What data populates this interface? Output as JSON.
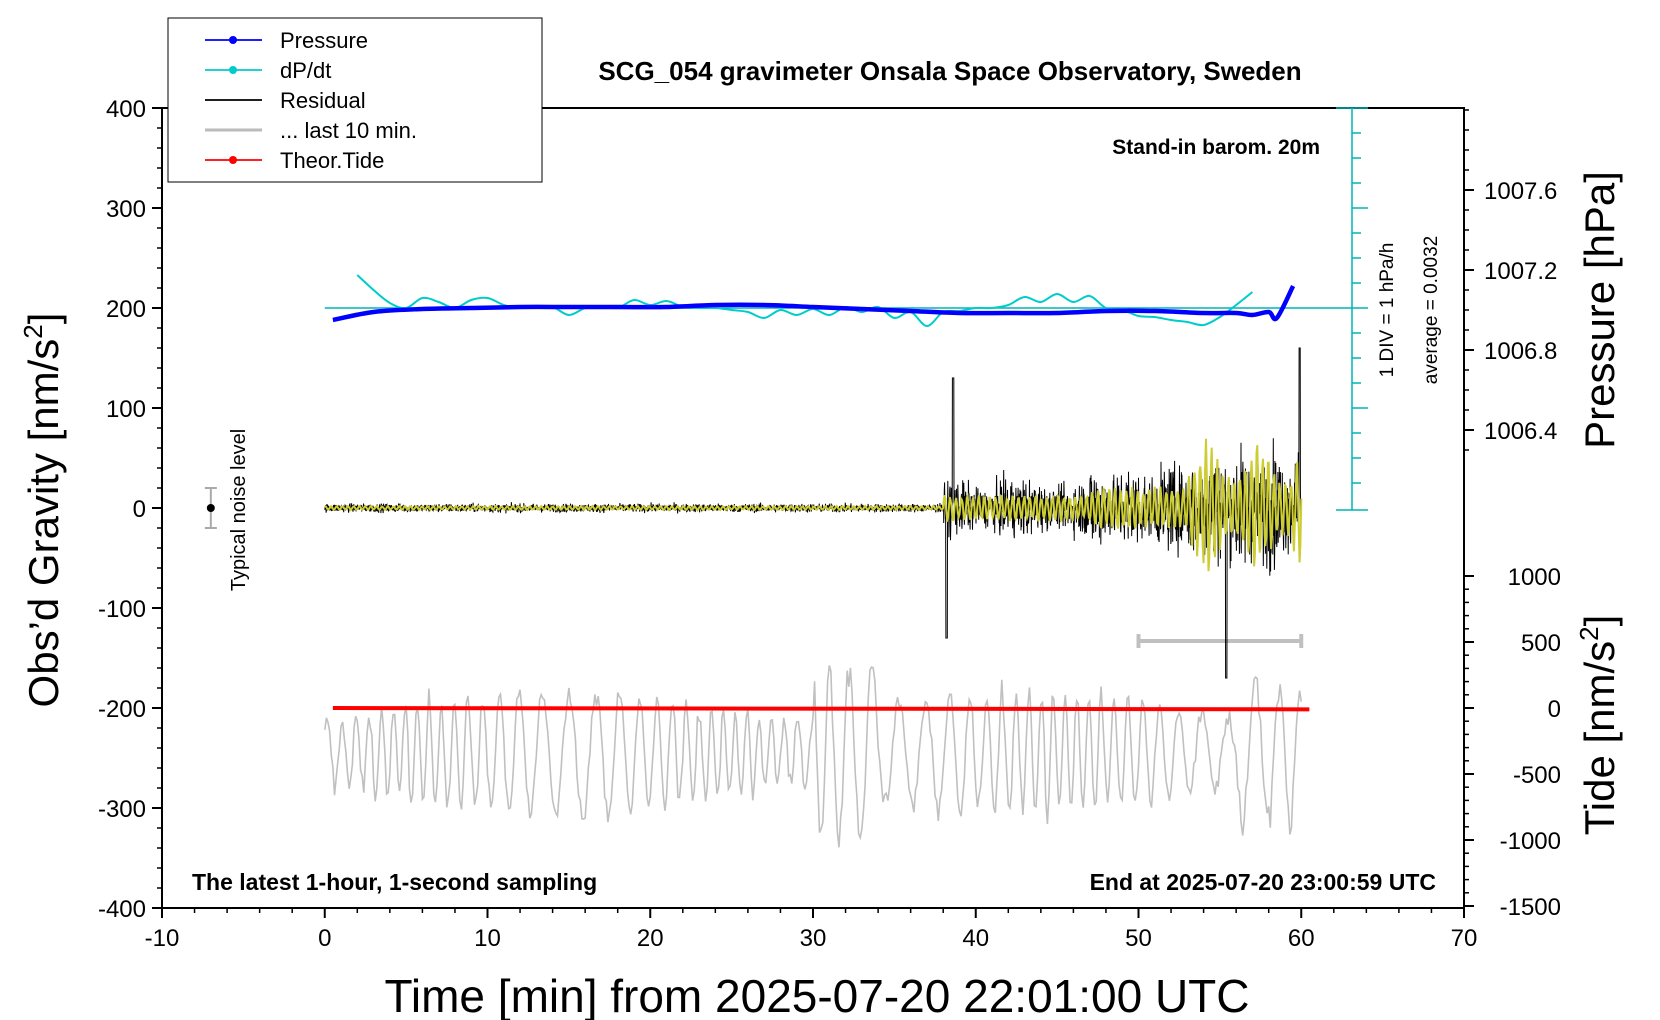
{
  "chart_data": {
    "type": "line",
    "title": "SCG_054 gravimeter Onsala Space Observatory, Sweden",
    "xlabel": "Time [min] from 2025-07-20 22:01:00 UTC",
    "xlim": [
      -10,
      70
    ],
    "x_ticks": [
      "-10",
      "0",
      "10",
      "20",
      "30",
      "40",
      "50",
      "60",
      "70"
    ],
    "y_left": {
      "label_main": "Obs’d Gravity [nm/s",
      "label_sup": "2",
      "label_end": "]",
      "range": [
        -400,
        400
      ],
      "ticks": [
        "400",
        "300",
        "200",
        "100",
        "0",
        "-100",
        "-200",
        "-300",
        "-400"
      ]
    },
    "y_pressure": {
      "label": "Pressure [hPa]",
      "ticks": [
        "1007.6",
        "1007.2",
        "1006.8",
        "1006.4"
      ]
    },
    "y_tide": {
      "label_main": "Tide [nm/s",
      "label_sup": "2",
      "label_end": "]",
      "range": [
        -1500,
        1000
      ],
      "ticks": [
        "1000",
        "500",
        "0",
        "-500",
        "-1000",
        "-1500"
      ]
    },
    "legend": [
      {
        "name": "Pressure",
        "color": "#0000ff",
        "marker": true
      },
      {
        "name": "dP/dt",
        "color": "#00cccc",
        "marker": true
      },
      {
        "name": "Residual",
        "color": "#000000",
        "marker": false
      },
      {
        "name": "... last 10 min.",
        "color": "#bbbbbb",
        "marker": false
      },
      {
        "name": "Theor.Tide",
        "color": "#ff0000",
        "marker": true
      }
    ],
    "series": [
      {
        "name": "Pressure",
        "color": "#0000ff",
        "x": [
          0.5,
          3,
          6,
          9,
          12,
          15,
          18,
          21,
          24,
          27,
          30,
          33,
          36,
          39,
          42,
          45,
          48,
          51,
          54,
          56,
          57,
          58,
          58.5,
          59.5
        ],
        "y": [
          188,
          196,
          199,
          200,
          201,
          201,
          201,
          201,
          203,
          203,
          201,
          199,
          197,
          195,
          195,
          195,
          197,
          197,
          195,
          195,
          193,
          196,
          190,
          222
        ]
      },
      {
        "name": "dP/dt",
        "color": "#00cccc",
        "x": [
          2,
          3,
          4,
          5,
          6,
          7,
          8,
          9,
          10,
          11,
          12,
          13,
          14,
          15,
          16,
          17,
          18,
          19,
          20,
          21,
          22,
          23,
          24,
          25,
          26,
          27,
          28,
          29,
          30,
          31,
          32,
          33,
          34,
          35,
          36,
          37,
          38,
          39,
          40,
          41,
          42,
          43,
          44,
          45,
          46,
          47,
          48,
          49,
          50,
          51,
          52,
          53,
          54,
          55,
          56,
          57
        ],
        "y": [
          233,
          218,
          205,
          200,
          210,
          206,
          200,
          208,
          210,
          203,
          200,
          201,
          201,
          193,
          200,
          202,
          200,
          208,
          203,
          207,
          201,
          200,
          200,
          198,
          196,
          190,
          198,
          193,
          199,
          193,
          201,
          196,
          201,
          190,
          196,
          182,
          196,
          197,
          200,
          200,
          203,
          211,
          206,
          214,
          206,
          212,
          200,
          198,
          192,
          191,
          188,
          186,
          183,
          191,
          203,
          216
        ]
      },
      {
        "name": "Theor.Tide",
        "color": "#ff0000",
        "x": [
          0.5,
          60.5
        ],
        "y": [
          0,
          -10
        ]
      },
      {
        "name": "Residual",
        "color": "#000000",
        "note": "noisy trace, amplitude grows after 38 min"
      },
      {
        "name": "... last 10 min.",
        "color": "#bbbbbb",
        "note": "overlay of the last 10-minute residual"
      }
    ],
    "noise_level": {
      "x": -7,
      "y": 0,
      "error": 20,
      "label": "Typical noise level"
    },
    "last10_bar": {
      "x_start": 50,
      "x_end": 60,
      "y": -133
    },
    "dpdt_scale": {
      "label_div": "1 DIV = 1 hPa/h",
      "label_avg": "average = 0.0032"
    },
    "annotations": {
      "stand_in": "Stand-in barom. 20m",
      "latest": "The latest 1-hour, 1-second sampling",
      "end_at": "End at 2025-07-20 23:00:59 UTC"
    }
  }
}
